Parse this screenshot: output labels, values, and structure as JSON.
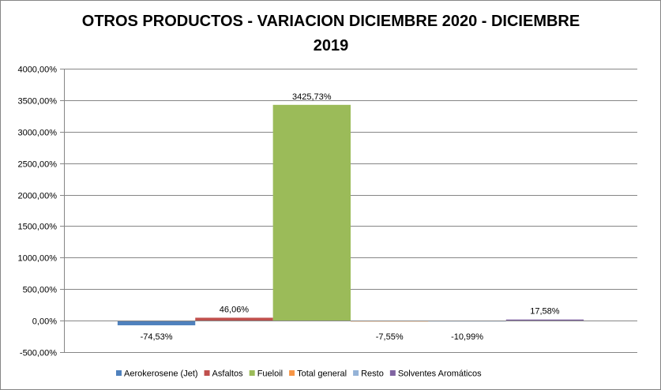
{
  "chart_data": {
    "type": "bar",
    "title_lines": [
      "OTROS PRODUCTOS - VARIACION DICIEMBRE 2020 - DICIEMBRE",
      "2019"
    ],
    "xlabel": "",
    "ylabel": "",
    "ylim": [
      -500,
      4000
    ],
    "yticks": [
      {
        "value": 4000,
        "label": "4000,00%"
      },
      {
        "value": 3500,
        "label": "3500,00%"
      },
      {
        "value": 3000,
        "label": "3000,00%"
      },
      {
        "value": 2500,
        "label": "2500,00%"
      },
      {
        "value": 2000,
        "label": "2000,00%"
      },
      {
        "value": 1500,
        "label": "1500,00%"
      },
      {
        "value": 1000,
        "label": "1000,00%"
      },
      {
        "value": 500,
        "label": "500,00%"
      },
      {
        "value": 0,
        "label": "0,00%"
      },
      {
        "value": -500,
        "label": "-500,00%"
      }
    ],
    "grid": true,
    "legend_position": "bottom",
    "series": [
      {
        "name": "Aerokerosene (Jet)",
        "value": -74.53,
        "label": "-74,53%",
        "color": "#4F81BD"
      },
      {
        "name": "Asfaltos",
        "value": 46.06,
        "label": "46,06%",
        "color": "#C0504D"
      },
      {
        "name": "Fueloil",
        "value": 3425.73,
        "label": "3425,73%",
        "color": "#9BBB59"
      },
      {
        "name": "Total general",
        "value": -7.55,
        "label": "-7,55%",
        "color": "#F79646"
      },
      {
        "name": "Resto",
        "value": -10.99,
        "label": "-10,99%",
        "color": "#95B3D7"
      },
      {
        "name": "Solventes Aromáticos",
        "value": 17.58,
        "label": "17,58%",
        "color": "#8064A2"
      }
    ]
  }
}
